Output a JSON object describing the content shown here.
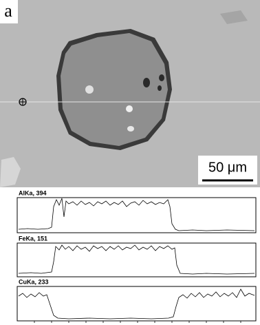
{
  "figure": {
    "panel_label": "a",
    "scale_bar": "50 μm",
    "profiles": [
      {
        "label": "AlKa, 394"
      },
      {
        "label": "FeKa, 151"
      },
      {
        "label": "CuKa, 233"
      }
    ]
  }
}
